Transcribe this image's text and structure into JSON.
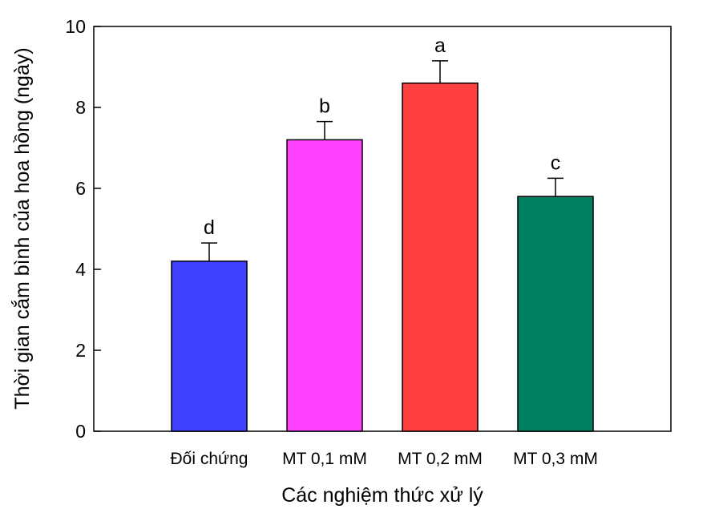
{
  "chart_data": {
    "type": "bar",
    "categories": [
      "Đối chứng",
      "MT 0,1 mM",
      "MT 0,2 mM",
      "MT 0,3 mM"
    ],
    "values": [
      4.2,
      7.2,
      8.6,
      5.8
    ],
    "errors": [
      0.45,
      0.45,
      0.55,
      0.45
    ],
    "significance": [
      "d",
      "b",
      "a",
      "c"
    ],
    "colors": [
      "#4040ff",
      "#ff40ff",
      "#ff4040",
      "#008060"
    ],
    "xlabel": "Các nghiệm thức xử lý",
    "ylabel": "Thời gian cắm bình của hoa hồng (ngày)",
    "ylim": [
      0,
      10
    ],
    "yticks": [
      0,
      2,
      4,
      6,
      8,
      10
    ],
    "ytick_labels": [
      "0",
      "2",
      "4",
      "6",
      "8",
      "10"
    ],
    "grid": false
  }
}
